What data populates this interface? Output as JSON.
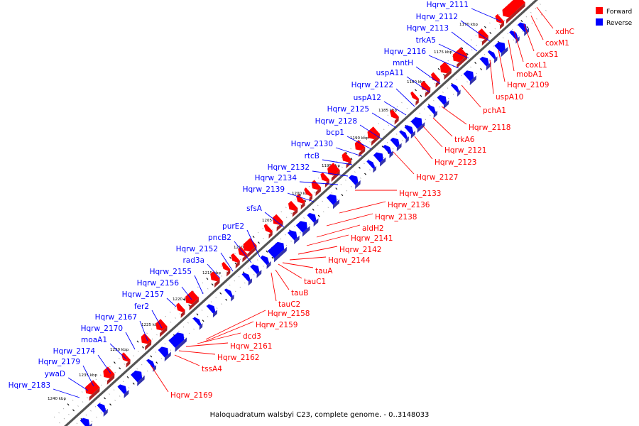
{
  "legend": [
    {
      "label": "Forward",
      "color": "#ff0000"
    },
    {
      "label": "Reverse",
      "color": "#0000ff"
    }
  ],
  "caption": "Haloquadratum walsbyi C23, complete genome. - 0..3148033",
  "kbp_marks": [
    "1170 kbp",
    "1175 kbp",
    "1180 kbp",
    "1185 kbp",
    "1190 kbp",
    "1195 kbp",
    "1200 kbp",
    "1205 kbp",
    "1210 kbp",
    "1215 kbp",
    "1220 kbp",
    "1225 kbp",
    "1230 kbp",
    "1235 kbp",
    "1240 kbp"
  ],
  "reverse_genes": [
    "Hqrw_2111",
    "Hqrw_2112",
    "Hqrw_2113",
    "trkA5",
    "Hqrw_2116",
    "mntH",
    "uspA11",
    "Hqrw_2122",
    "uspA12",
    "Hqrw_2125",
    "Hqrw_2128",
    "bcp1",
    "Hqrw_2130",
    "rtcB",
    "Hqrw_2132",
    "Hqrw_2134",
    "Hqrw_2139",
    "sfsA",
    "purE2",
    "pncB2",
    "Hqrw_2152",
    "rad3a",
    "Hqrw_2155",
    "Hqrw_2156",
    "Hqrw_2157",
    "fer2",
    "Hqrw_2167",
    "Hqrw_2170",
    "moaA1",
    "Hqrw_2174",
    "Hqrw_2179",
    "ywaD",
    "Hqrw_2183"
  ],
  "forward_genes": [
    "xdhC",
    "coxM1",
    "coxS1",
    "coxL1",
    "mobA1",
    "Hqrw_2109",
    "uspA10",
    "pchA1",
    "Hqrw_2118",
    "trkA6",
    "Hqrw_2121",
    "Hqrw_2123",
    "Hqrw_2127",
    "Hqrw_2133",
    "Hqrw_2136",
    "Hqrw_2138",
    "aldH2",
    "Hqrw_2141",
    "Hqrw_2142",
    "Hqrw_2144",
    "tauA",
    "tauC1",
    "tauB",
    "tauC2",
    "Hqrw_2158",
    "Hqrw_2159",
    "dcd3",
    "Hqrw_2161",
    "Hqrw_2162",
    "tssA4",
    "Hqrw_2169"
  ]
}
